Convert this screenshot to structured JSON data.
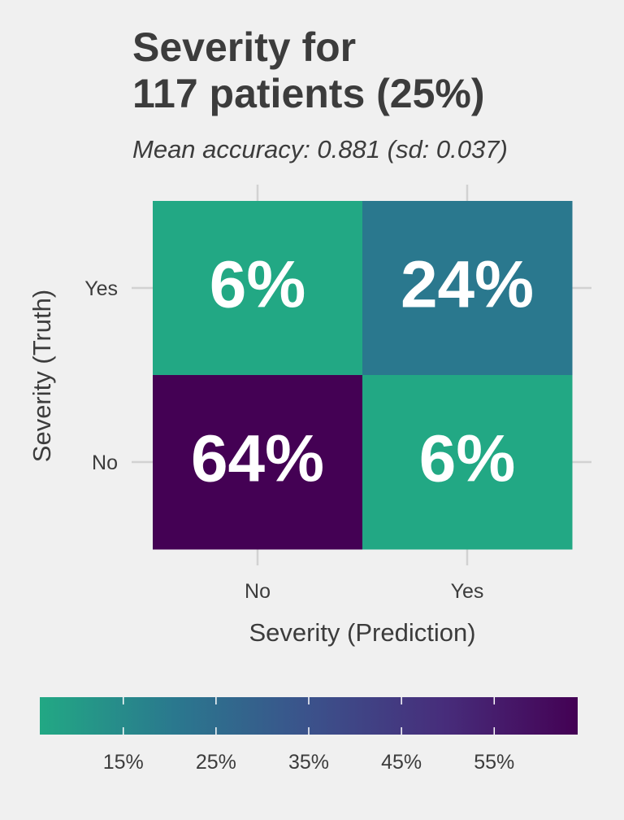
{
  "chart_data": {
    "type": "heatmap",
    "title_lines": [
      "Severity for",
      "117 patients (25%)"
    ],
    "subtitle": "Mean accuracy: 0.881 (sd: 0.037)",
    "xlabel": "Severity (Prediction)",
    "ylabel": "Severity (Truth)",
    "x_categories": [
      "No",
      "Yes"
    ],
    "y_categories": [
      "No",
      "Yes"
    ],
    "cells": [
      {
        "prediction": "No",
        "truth": "Yes",
        "value": 6,
        "label": "6%",
        "color": "#22a884"
      },
      {
        "prediction": "Yes",
        "truth": "Yes",
        "value": 24,
        "label": "24%",
        "color": "#2a788e"
      },
      {
        "prediction": "No",
        "truth": "No",
        "value": 64,
        "label": "64%",
        "color": "#440154"
      },
      {
        "prediction": "Yes",
        "truth": "No",
        "value": 6,
        "label": "6%",
        "color": "#22a884"
      }
    ],
    "grid": true,
    "colorbar": {
      "position": "bottom",
      "min": 6,
      "max": 64,
      "ticks": [
        15,
        25,
        35,
        45,
        55
      ],
      "tick_labels": [
        "15%",
        "25%",
        "35%",
        "45%",
        "55%"
      ],
      "colors": [
        "#22a884",
        "#2a788e",
        "#3b528b",
        "#472d7b",
        "#440154"
      ]
    }
  }
}
